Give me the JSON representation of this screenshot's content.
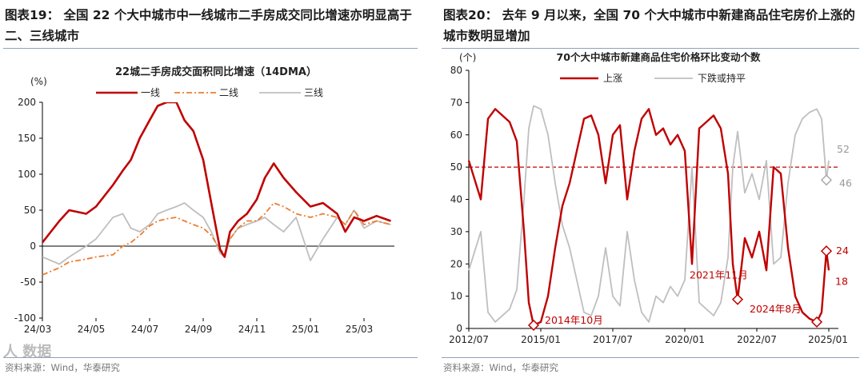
{
  "left": {
    "heading_label": "图表19：",
    "heading_text": "全国 22 个大中城市中一线城市二手房成交同比增速亦明显高于二、三线城市",
    "source": "资料来源：Wind，华泰研究",
    "watermark": "人 数据"
  },
  "right": {
    "heading_label": "图表20：",
    "heading_text": "去年 9 月以来，全国 70 个大中城市中新建商品住宅房价上涨的城市数明显增加",
    "source": "资料来源：Wind，华泰研究"
  },
  "chart_data": [
    {
      "type": "line",
      "title": "22城二手房成交面积同比增速（14DMA）",
      "ylabel": "(%)",
      "ylim": [
        -100,
        200
      ],
      "yticks": [
        -100,
        -50,
        0,
        50,
        100,
        150,
        200
      ],
      "x_tick_labels": [
        "24/03",
        "24/05",
        "24/07",
        "24/09",
        "24/11",
        "25/01",
        "25/03"
      ],
      "x": [
        "2024-03-01",
        "2024-03-20",
        "2024-04-01",
        "2024-04-20",
        "2024-05-01",
        "2024-05-20",
        "2024-06-01",
        "2024-06-10",
        "2024-06-20",
        "2024-07-01",
        "2024-07-10",
        "2024-07-20",
        "2024-08-01",
        "2024-08-10",
        "2024-08-20",
        "2024-09-01",
        "2024-09-10",
        "2024-09-20",
        "2024-09-25",
        "2024-10-01",
        "2024-10-10",
        "2024-10-20",
        "2024-11-01",
        "2024-11-10",
        "2024-11-20",
        "2024-12-01",
        "2024-12-15",
        "2025-01-01",
        "2025-01-15",
        "2025-02-01",
        "2025-02-10",
        "2025-02-20",
        "2025-03-01",
        "2025-03-15",
        "2025-03-31"
      ],
      "series": [
        {
          "name": "一线",
          "color": "#c00000",
          "dash": "solid",
          "values": [
            5,
            35,
            50,
            45,
            55,
            85,
            105,
            120,
            150,
            175,
            195,
            200,
            200,
            175,
            160,
            120,
            60,
            -5,
            -15,
            20,
            35,
            45,
            65,
            95,
            115,
            95,
            75,
            55,
            60,
            45,
            20,
            40,
            35,
            42,
            35
          ]
        },
        {
          "name": "二线",
          "color": "#ed7d31",
          "dash": "dashdot",
          "values": [
            -40,
            -30,
            -22,
            -18,
            -15,
            -12,
            0,
            5,
            15,
            28,
            35,
            38,
            40,
            35,
            30,
            25,
            15,
            -5,
            -10,
            10,
            25,
            35,
            35,
            45,
            60,
            55,
            45,
            40,
            45,
            40,
            30,
            50,
            30,
            35,
            30
          ]
        },
        {
          "name": "三线",
          "color": "#bfbfbf",
          "dash": "solid",
          "values": [
            -15,
            -25,
            -15,
            0,
            10,
            40,
            45,
            25,
            20,
            30,
            45,
            50,
            55,
            60,
            50,
            40,
            20,
            -10,
            -15,
            10,
            25,
            30,
            35,
            40,
            30,
            20,
            40,
            -20,
            10,
            40,
            30,
            50,
            25,
            35,
            30
          ]
        }
      ]
    },
    {
      "type": "line",
      "title": "70个大中城市新建商品住宅价格环比变动个数",
      "ylabel": "(个)",
      "ylim": [
        0,
        80
      ],
      "yticks": [
        0,
        10,
        20,
        30,
        40,
        50,
        60,
        70,
        80
      ],
      "x_tick_labels": [
        "2012/07",
        "2015/01",
        "2017/07",
        "2020/01",
        "2022/07",
        "2025/01"
      ],
      "x": [
        "2012-07",
        "2012-12",
        "2013-03",
        "2013-06",
        "2013-09",
        "2013-12",
        "2014-03",
        "2014-06",
        "2014-08",
        "2014-10",
        "2015-01",
        "2015-04",
        "2015-07",
        "2015-10",
        "2016-01",
        "2016-04",
        "2016-07",
        "2016-10",
        "2017-01",
        "2017-04",
        "2017-07",
        "2017-10",
        "2018-01",
        "2018-04",
        "2018-07",
        "2018-10",
        "2019-01",
        "2019-04",
        "2019-07",
        "2019-10",
        "2020-01",
        "2020-04",
        "2020-07",
        "2020-10",
        "2021-01",
        "2021-04",
        "2021-07",
        "2021-09",
        "2021-11",
        "2022-02",
        "2022-05",
        "2022-08",
        "2022-11",
        "2023-02",
        "2023-05",
        "2023-08",
        "2023-11",
        "2024-02",
        "2024-05",
        "2024-08",
        "2024-10",
        "2024-12",
        "2025-01"
      ],
      "reference_line": 50,
      "series": [
        {
          "name": "上涨",
          "color": "#c00000",
          "values": [
            52,
            40,
            65,
            68,
            66,
            64,
            58,
            30,
            8,
            1,
            2,
            10,
            25,
            38,
            45,
            55,
            65,
            66,
            60,
            45,
            60,
            63,
            40,
            55,
            65,
            68,
            60,
            62,
            57,
            60,
            55,
            20,
            62,
            64,
            66,
            62,
            48,
            20,
            9,
            28,
            22,
            30,
            18,
            50,
            48,
            25,
            10,
            5,
            3,
            2,
            5,
            24,
            18
          ]
        },
        {
          "name": "下跌或持平",
          "color": "#bfbfbf",
          "values": [
            18,
            30,
            5,
            2,
            4,
            6,
            12,
            40,
            62,
            69,
            68,
            60,
            45,
            32,
            25,
            15,
            5,
            4,
            10,
            25,
            10,
            7,
            30,
            15,
            5,
            2,
            10,
            8,
            13,
            10,
            15,
            50,
            8,
            6,
            4,
            8,
            22,
            50,
            61,
            42,
            48,
            40,
            52,
            20,
            22,
            45,
            60,
            65,
            67,
            68,
            65,
            46,
            52
          ]
        }
      ],
      "annotations": [
        {
          "text": "2014年10月",
          "x": "2014-10",
          "y": 1
        },
        {
          "text": "2021年11月",
          "x": "2021-11",
          "y": 9
        },
        {
          "text": "2024年8月",
          "x": "2024-08",
          "y": 2
        },
        {
          "text": "24",
          "x": "2024-12",
          "y": 24
        },
        {
          "text": "18",
          "x": "2025-01",
          "y": 18
        },
        {
          "text": "52",
          "x": "2025-01",
          "y": 52
        },
        {
          "text": "46",
          "x": "2024-12",
          "y": 46
        }
      ]
    }
  ]
}
